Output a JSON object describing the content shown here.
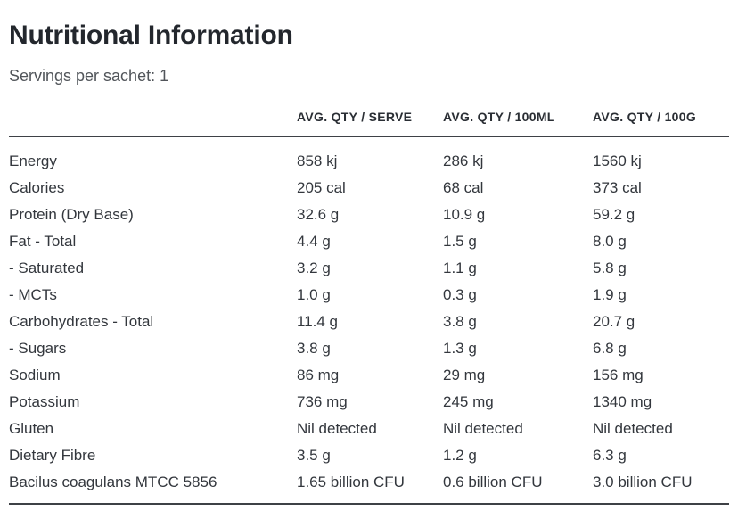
{
  "header": {
    "title": "Nutritional Information",
    "servings": "Servings per sachet: 1"
  },
  "table": {
    "columns": [
      "AVG. QTY / SERVE",
      "AVG. QTY / 100ML",
      "AVG. QTY / 100G"
    ],
    "rows": [
      {
        "label": "Energy",
        "serve": "858 kj",
        "per_100ml": "286 kj",
        "per_100g": "1560 kj"
      },
      {
        "label": "Calories",
        "serve": "205 cal",
        "per_100ml": "68 cal",
        "per_100g": "373 cal"
      },
      {
        "label": "Protein (Dry Base)",
        "serve": "32.6 g",
        "per_100ml": "10.9 g",
        "per_100g": "59.2 g"
      },
      {
        "label": "Fat - Total",
        "serve": "4.4 g",
        "per_100ml": "1.5 g",
        "per_100g": "8.0 g"
      },
      {
        "label": "- Saturated",
        "serve": "3.2 g",
        "per_100ml": "1.1 g",
        "per_100g": "5.8 g"
      },
      {
        "label": "- MCTs",
        "serve": "1.0 g",
        "per_100ml": "0.3 g",
        "per_100g": "1.9 g"
      },
      {
        "label": "Carbohydrates - Total",
        "serve": "11.4 g",
        "per_100ml": "3.8 g",
        "per_100g": "20.7 g"
      },
      {
        "label": "- Sugars",
        "serve": "3.8 g",
        "per_100ml": "1.3 g",
        "per_100g": "6.8 g"
      },
      {
        "label": "Sodium",
        "serve": "86 mg",
        "per_100ml": "29 mg",
        "per_100g": "156 mg"
      },
      {
        "label": "Potassium",
        "serve": "736 mg",
        "per_100ml": "245 mg",
        "per_100g": "1340 mg"
      },
      {
        "label": "Gluten",
        "serve": "Nil detected",
        "per_100ml": "Nil detected",
        "per_100g": "Nil detected"
      },
      {
        "label": "Dietary Fibre",
        "serve": "3.5 g",
        "per_100ml": "1.2 g",
        "per_100g": "6.3 g"
      },
      {
        "label": "Bacilus coagulans MTCC 5856",
        "serve": "1.65 billion CFU",
        "per_100ml": "0.6 billion CFU",
        "per_100g": "3.0 billion CFU"
      }
    ]
  },
  "colors": {
    "title_text": "#23272d",
    "subtitle_text": "#51555a",
    "body_text": "#33373d",
    "rule_line": "#3e4146",
    "background": "#ffffff"
  }
}
